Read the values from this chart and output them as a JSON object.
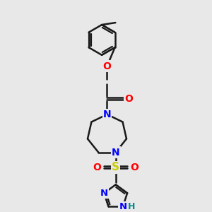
{
  "bg_color": "#e8e8e8",
  "bond_color": "#1a1a1a",
  "atom_colors": {
    "O": "#ff0000",
    "N": "#0000ff",
    "S": "#cccc00",
    "H": "#008b8b",
    "C": "#1a1a1a"
  },
  "figsize": [
    3.0,
    3.0
  ],
  "dpi": 100
}
